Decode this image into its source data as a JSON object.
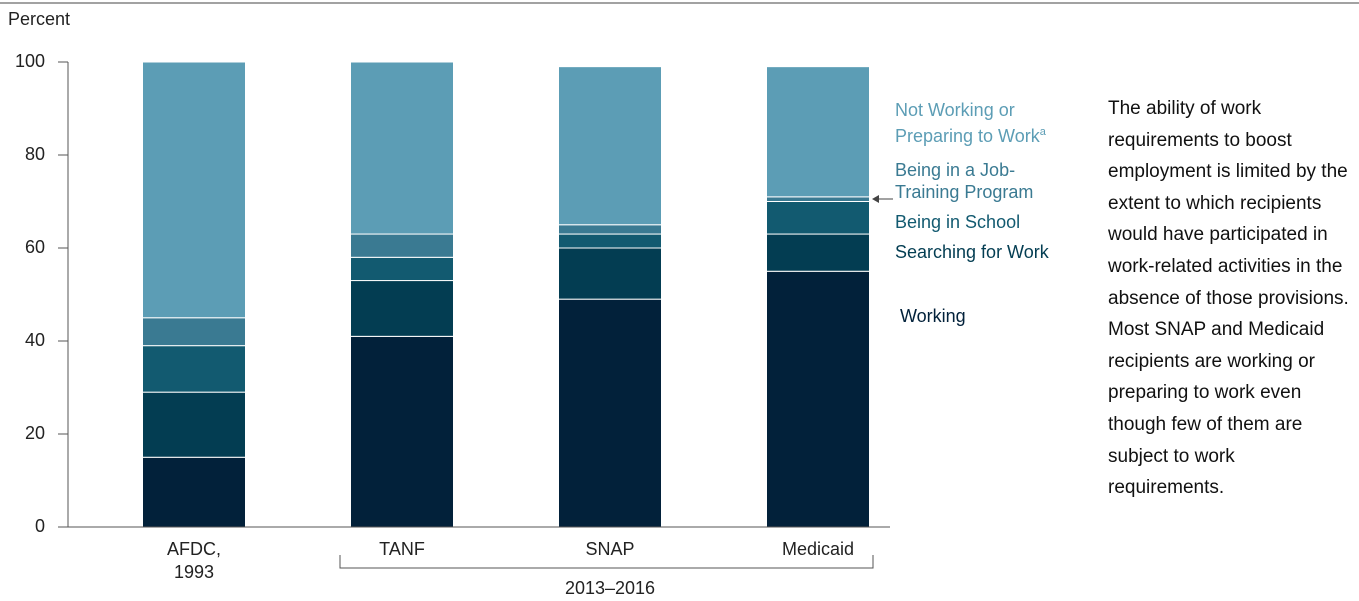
{
  "chart_data": {
    "type": "stacked_bar",
    "y_label": "Percent",
    "categories": [
      "AFDC, 1993",
      "TANF",
      "SNAP",
      "Medicaid"
    ],
    "group_label": "2013–2016",
    "series": [
      {
        "name": "Working",
        "color": "#02213a",
        "values": [
          15,
          41,
          49,
          55
        ]
      },
      {
        "name": "Searching for Work",
        "color": "#033d52",
        "values": [
          14,
          12,
          11,
          8
        ]
      },
      {
        "name": "Being in School",
        "color": "#125a70",
        "values": [
          10,
          5,
          3,
          7
        ]
      },
      {
        "name": "Being in a Job-Training Program",
        "color": "#3a7a92",
        "values": [
          6,
          5,
          2,
          1
        ]
      },
      {
        "name": "Not Working or Preparing to Work",
        "color": "#5c9db5",
        "values": [
          55,
          37,
          34,
          28
        ],
        "footnote": "a"
      }
    ],
    "ylim": [
      0,
      100
    ],
    "yticks": [
      0,
      20,
      40,
      60,
      80,
      100
    ],
    "side_text": "The ability of work requirements to boost employment is limited by the extent to which recipients would have participated in work-related activities in the absence of those provisions. Most SNAP and Medicaid recipients are working or preparing to work even though few of them are subject to work requirements."
  }
}
